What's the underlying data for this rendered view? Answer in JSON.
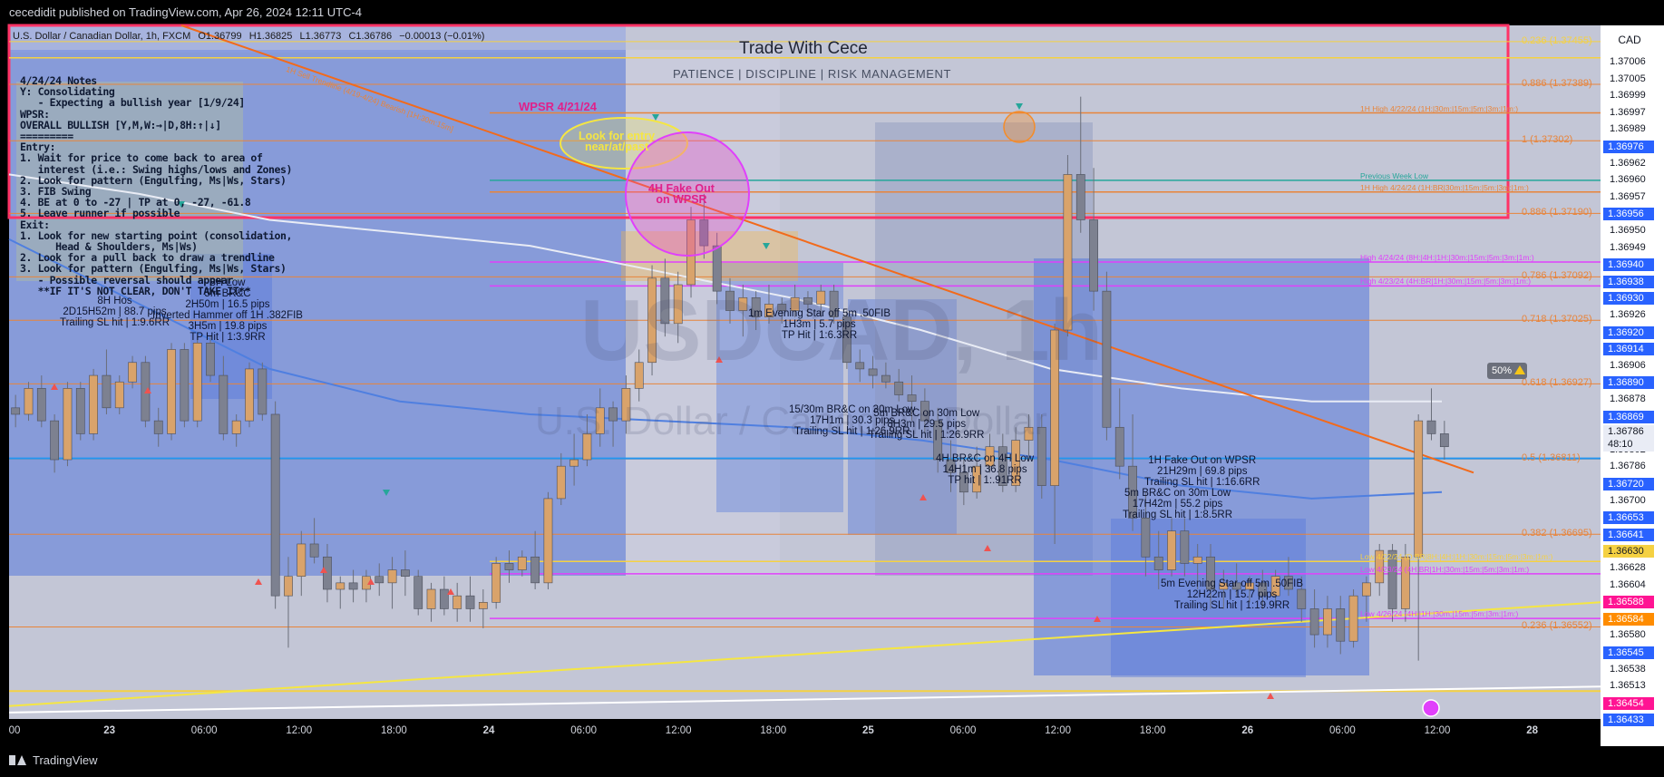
{
  "header": {
    "published_by": "cecedidit published on TradingView.com, Apr 26, 2024 12:11 UTC-4"
  },
  "symbol_bar": {
    "symbol": "U.S. Dollar / Canadian Dollar, 1h, FXCM",
    "open": "O1.36799",
    "high": "H1.36825",
    "low": "L1.36773",
    "close": "C1.36786",
    "change": "−0.00013 (−0.01%)"
  },
  "branding": {
    "title": "Trade With Cece",
    "subtitle": "PATIENCE  |  DISCIPLINE  |  RISK MANAGEMENT"
  },
  "watermark": {
    "ticker": "USDCAD, 1h",
    "name": "U.S. Dollar / Canadian Dollar"
  },
  "currency_badge": "CAD",
  "notes_text": "4/24/24 Notes\nY: Consolidating\n   - Expecting a bullish year [1/9/24]\nWPSR:\nOVERALL BULLISH [Y,M,W:→|D,8H:↑|↓]\n=========\nEntry:\n1. Wait for price to come back to area of\n   interest (i.e.: Swing highs/lows and Zones)\n2. Look for pattern (Engulfing, Ms|Ws, Stars)\n3. FIB Swing\n4. BE at 0 to -27 | TP at 0, -27, -61.8\n5. Leave runner if possible\nExit:\n1. Look for new starting point (consolidation,\n      Head & Shoulders, Ms|Ws)\n2. Look for a pull back to draw a trendline\n3. Look for pattern (Engulfing, Ms|Ws, Stars)\n   - Possible reversal should appear\n   **IF IT'S NOT CLEAR, DON'T TAKE IT**",
  "annotations": {
    "wpsr": "WPSR 4/21/24",
    "look_for_entry": "Look for entry\nnear/at/past",
    "fake_out_4h": "4H Fake Out\non WPSR",
    "trend_label": "1H Sell Trendline (4/19-4/24) Bearish [1H:30m:15m]",
    "trade1": "8H Hos\n2D15H52m | 88.7 pips\nTrailing SL hit | 1:9.6RR",
    "trade2": "8H Low\n5m BR&C\n2H50m | 16.5 pips\nInverted Hammer off 1H .382FIB\n3H5m | 19.8 pips\nTP Hit | 1:3.9RR",
    "trade3": "1m Evening Star off 5m .50FIB\n1H3m | 5.7 pips\nTP Hit | 1:6.3RR",
    "trade4": "15/30m BR&C on 30m Low\n17H1m | 30.3 pips\nTrailing SL hit | 1:26.9RR",
    "trade5": "5m BR&C on 30m Low\n8H3m | 29.5 pips\nTrailing SL hit | 1:26.9RR",
    "trade6": "4H BR&C on 4H Low\n14H1m | 36.8 pips\nTP hit | 1:.91RR",
    "trade7": "1H Fake Out on WPSR\n21H29m | 69.8 pips\nTrailing SL hit | 1:16.6RR",
    "trade8": "5m BR&C on 30m Low\n17H42m | 55.2 pips\nTrailing SL hit | 1:8.5RR",
    "trade9": "5m Evening Star off 5m .50FIB\n12H22m | 15.7 pips\nTrailing SL hit | 1:19.9RR"
  },
  "fib_levels": [
    {
      "label": "0.236 (1.37455)",
      "price": 1.37455,
      "color": "#f5d142"
    },
    {
      "label": "0.886 (1.37389)",
      "price": 1.37389,
      "color": "#e8843a"
    },
    {
      "label": "1 (1.37302)",
      "price": 1.37302,
      "color": "#e8843a"
    },
    {
      "label": "0.886 (1.37190)",
      "price": 1.3719,
      "color": "#e8843a"
    },
    {
      "label": "0.786 (1.37092)",
      "price": 1.37092,
      "color": "#e8843a"
    },
    {
      "label": "0.718 (1.37025)",
      "price": 1.37025,
      "color": "#e8843a"
    },
    {
      "label": "0.618 (1.36927)",
      "price": 1.36927,
      "color": "#e8843a"
    },
    {
      "label": "0.5 (1.36811)",
      "price": 1.36811,
      "color": "#e8843a"
    },
    {
      "label": "0.382 (1.36695)",
      "price": 1.36695,
      "color": "#e8843a"
    },
    {
      "label": "0.236 (1.36552)",
      "price": 1.36552,
      "color": "#e8843a"
    }
  ],
  "level_lines": [
    {
      "label": "1H High 4/22/24 (1H:|30m:|15m:|5m:|3m:|1m:)",
      "price": 1.37345,
      "color": "#e8843a"
    },
    {
      "label": "Previous Week Low",
      "price": 1.37241,
      "color": "#26a69a"
    },
    {
      "label": "1H High 4/24/24 (1H:BR|30m:|15m:|5m:|3m:|1m:)",
      "price": 1.37223,
      "color": "#e8843a"
    },
    {
      "label": "High 4/24/24 (8H:|4H:|1H:|30m:|15m:|5m:|3m:|1m:)",
      "price": 1.37115,
      "color": "#e040fb"
    },
    {
      "label": "High 4/23/24 (4H:BR|1H:|30m:|15m:|5m:|3m:|1m:)",
      "price": 1.37078,
      "color": "#e040fb"
    },
    {
      "label": "Low 4/22/24 (D:BR|8H:|4H:|1H:|30m:|15m:|5m:|3m:|1m:)",
      "price": 1.36653,
      "color": "#f5d142"
    },
    {
      "label": "Low 4/23/24 (4H:BR|1H:|30m:|15m:|5m:|3m:|1m:)",
      "price": 1.36634,
      "color": "#e040fb"
    },
    {
      "label": "Low 4/26/24 (4H:|1H:|30m:|15m:|5m:|3m:|1m:)",
      "price": 1.36565,
      "color": "#e040fb"
    }
  ],
  "price_scale": [
    "1.37006",
    "1.37005",
    "1.36999",
    "1.36997",
    "1.36989",
    "1.36976",
    "1.36962",
    "1.36960",
    "1.36957",
    "1.36956",
    "1.36950",
    "1.36949",
    "1.36940",
    "1.36938",
    "1.36930",
    "1.36926",
    "1.36920",
    "1.36914",
    "1.36906",
    "1.36890",
    "1.36878",
    "1.36869",
    "1.36850",
    "1.36802",
    "1.36786",
    "1.36720",
    "1.36700",
    "1.36653",
    "1.36641",
    "1.36630",
    "1.36628",
    "1.36604",
    "1.36588",
    "1.36584",
    "1.36580",
    "1.36545",
    "1.36538",
    "1.36513",
    "1.36454",
    "1.36433"
  ],
  "price_tags": [
    {
      "text": "1.36976",
      "color": "#2962ff"
    },
    {
      "text": "1.36956",
      "color": "#2962ff"
    },
    {
      "text": "1.36940",
      "color": "#2962ff"
    },
    {
      "text": "1.36938",
      "color": "#2962ff"
    },
    {
      "text": "1.36930",
      "color": "#2962ff"
    },
    {
      "text": "1.36920",
      "color": "#2962ff"
    },
    {
      "text": "1.36914",
      "color": "#2962ff"
    },
    {
      "text": "1.36890",
      "color": "#2962ff"
    },
    {
      "text": "1.36869",
      "color": "#2962ff"
    },
    {
      "text": "1.36720",
      "color": "#2962ff"
    },
    {
      "text": "1.36653",
      "color": "#2962ff"
    },
    {
      "text": "1.36641",
      "color": "#2962ff"
    },
    {
      "text": "1.36630",
      "color": "#f5d142"
    },
    {
      "text": "1.36588",
      "color": "#ff1493"
    },
    {
      "text": "1.36584",
      "color": "#ff8c00"
    },
    {
      "text": "1.36545",
      "color": "#2962ff"
    },
    {
      "text": "1.36454",
      "color": "#ff1493"
    },
    {
      "text": "1.36433",
      "color": "#2962ff"
    }
  ],
  "last_price": {
    "price": "1.36786",
    "countdown": "48:10"
  },
  "percent_tag": "50%",
  "time_axis": [
    {
      "label": "00",
      "bold": false
    },
    {
      "label": "23",
      "bold": true
    },
    {
      "label": "06:00",
      "bold": false
    },
    {
      "label": "12:00",
      "bold": false
    },
    {
      "label": "18:00",
      "bold": false
    },
    {
      "label": "24",
      "bold": true
    },
    {
      "label": "06:00",
      "bold": false
    },
    {
      "label": "12:00",
      "bold": false
    },
    {
      "label": "18:00",
      "bold": false
    },
    {
      "label": "25",
      "bold": true
    },
    {
      "label": "06:00",
      "bold": false
    },
    {
      "label": "12:00",
      "bold": false
    },
    {
      "label": "18:00",
      "bold": false
    },
    {
      "label": "26",
      "bold": true
    },
    {
      "label": "06:00",
      "bold": false
    },
    {
      "label": "12:00",
      "bold": false
    },
    {
      "label": "28",
      "bold": true
    }
  ],
  "footer": {
    "brand": "TradingView"
  },
  "chart_data": {
    "type": "candlestick",
    "title": "U.S. Dollar / Canadian Dollar, 1h, FXCM",
    "ylim": [
      1.3641,
      1.3748
    ],
    "candles": [
      [
        1.3689,
        1.3691,
        1.3686,
        1.3688
      ],
      [
        1.3688,
        1.3693,
        1.3687,
        1.3692
      ],
      [
        1.3692,
        1.3694,
        1.3686,
        1.3687
      ],
      [
        1.3687,
        1.3688,
        1.3679,
        1.3681
      ],
      [
        1.3681,
        1.3693,
        1.368,
        1.3692
      ],
      [
        1.3692,
        1.3693,
        1.3684,
        1.3685
      ],
      [
        1.3685,
        1.3695,
        1.3684,
        1.3694
      ],
      [
        1.3694,
        1.3698,
        1.3688,
        1.3689
      ],
      [
        1.3689,
        1.3694,
        1.3688,
        1.3693
      ],
      [
        1.3693,
        1.3697,
        1.3692,
        1.3696
      ],
      [
        1.3696,
        1.3697,
        1.3686,
        1.3687
      ],
      [
        1.3687,
        1.3689,
        1.3683,
        1.3685
      ],
      [
        1.3685,
        1.3699,
        1.3684,
        1.3698
      ],
      [
        1.3698,
        1.3699,
        1.3686,
        1.3687
      ],
      [
        1.3687,
        1.37,
        1.3686,
        1.3699
      ],
      [
        1.3699,
        1.37,
        1.3693,
        1.3694
      ],
      [
        1.3694,
        1.3697,
        1.3684,
        1.3685
      ],
      [
        1.3685,
        1.3688,
        1.3683,
        1.3687
      ],
      [
        1.3687,
        1.3696,
        1.3686,
        1.3695
      ],
      [
        1.3695,
        1.3696,
        1.3687,
        1.3688
      ],
      [
        1.3688,
        1.369,
        1.3658,
        1.366
      ],
      [
        1.366,
        1.3666,
        1.3652,
        1.3663
      ],
      [
        1.3663,
        1.367,
        1.366,
        1.3668
      ],
      [
        1.3668,
        1.3672,
        1.3665,
        1.3666
      ],
      [
        1.3666,
        1.3668,
        1.3659,
        1.3661
      ],
      [
        1.3661,
        1.3663,
        1.3658,
        1.3662
      ],
      [
        1.3662,
        1.3664,
        1.3659,
        1.3661
      ],
      [
        1.3661,
        1.3664,
        1.3659,
        1.3663
      ],
      [
        1.3663,
        1.3665,
        1.366,
        1.3662
      ],
      [
        1.3662,
        1.3666,
        1.3658,
        1.3664
      ],
      [
        1.3664,
        1.3667,
        1.366,
        1.3663
      ],
      [
        1.3663,
        1.3664,
        1.3657,
        1.3658
      ],
      [
        1.3658,
        1.3662,
        1.3656,
        1.3661
      ],
      [
        1.3661,
        1.3663,
        1.3657,
        1.3658
      ],
      [
        1.3658,
        1.3662,
        1.3656,
        1.366
      ],
      [
        1.366,
        1.3663,
        1.3656,
        1.3658
      ],
      [
        1.3658,
        1.3661,
        1.3655,
        1.3659
      ],
      [
        1.3659,
        1.3666,
        1.3658,
        1.3665
      ],
      [
        1.3665,
        1.3667,
        1.3662,
        1.3664
      ],
      [
        1.3664,
        1.3667,
        1.3663,
        1.3666
      ],
      [
        1.3666,
        1.367,
        1.3661,
        1.3662
      ],
      [
        1.3662,
        1.3676,
        1.3661,
        1.3675
      ],
      [
        1.3675,
        1.3682,
        1.3674,
        1.368
      ],
      [
        1.368,
        1.3685,
        1.3677,
        1.3681
      ],
      [
        1.3681,
        1.3688,
        1.368,
        1.3685
      ],
      [
        1.3685,
        1.3692,
        1.3683,
        1.3689
      ],
      [
        1.3689,
        1.369,
        1.3683,
        1.3687
      ],
      [
        1.3687,
        1.3694,
        1.3685,
        1.3692
      ],
      [
        1.3692,
        1.3698,
        1.369,
        1.3696
      ],
      [
        1.3696,
        1.3711,
        1.3694,
        1.3709
      ],
      [
        1.3709,
        1.3712,
        1.37,
        1.3702
      ],
      [
        1.3702,
        1.371,
        1.3699,
        1.3708
      ],
      [
        1.3708,
        1.372,
        1.3706,
        1.3718
      ],
      [
        1.3718,
        1.3722,
        1.3712,
        1.3714
      ],
      [
        1.3714,
        1.3716,
        1.3705,
        1.3707
      ],
      [
        1.3707,
        1.3709,
        1.3702,
        1.3704
      ],
      [
        1.3704,
        1.3708,
        1.37,
        1.3706
      ],
      [
        1.3706,
        1.3707,
        1.3701,
        1.3703
      ],
      [
        1.3703,
        1.3708,
        1.3702,
        1.3705
      ],
      [
        1.3705,
        1.3706,
        1.3702,
        1.3704
      ],
      [
        1.3704,
        1.3708,
        1.3703,
        1.3706
      ],
      [
        1.3706,
        1.3707,
        1.3703,
        1.3705
      ],
      [
        1.3705,
        1.3708,
        1.3703,
        1.3707
      ],
      [
        1.3707,
        1.3708,
        1.3702,
        1.3703
      ],
      [
        1.3703,
        1.3704,
        1.3695,
        1.3696
      ],
      [
        1.3696,
        1.3698,
        1.3693,
        1.3695
      ],
      [
        1.3695,
        1.3697,
        1.3692,
        1.3694
      ],
      [
        1.3694,
        1.3696,
        1.3692,
        1.3693
      ],
      [
        1.3693,
        1.3695,
        1.369,
        1.3691
      ],
      [
        1.3691,
        1.3694,
        1.3687,
        1.369
      ],
      [
        1.369,
        1.3692,
        1.3685,
        1.3687
      ],
      [
        1.3687,
        1.3689,
        1.3679,
        1.3681
      ],
      [
        1.3681,
        1.3684,
        1.3676,
        1.3679
      ],
      [
        1.3679,
        1.3681,
        1.3674,
        1.3676
      ],
      [
        1.3676,
        1.3683,
        1.3675,
        1.368
      ],
      [
        1.368,
        1.3685,
        1.3679,
        1.3683
      ],
      [
        1.3683,
        1.3685,
        1.3676,
        1.3677
      ],
      [
        1.3677,
        1.3686,
        1.3676,
        1.3684
      ],
      [
        1.3684,
        1.3688,
        1.3681,
        1.3686
      ],
      [
        1.3686,
        1.3688,
        1.3675,
        1.3677
      ],
      [
        1.3677,
        1.3702,
        1.3668,
        1.3701
      ],
      [
        1.3701,
        1.3728,
        1.37,
        1.3725
      ],
      [
        1.3725,
        1.3737,
        1.3716,
        1.3718
      ],
      [
        1.3718,
        1.3726,
        1.3704,
        1.3707
      ],
      [
        1.3707,
        1.371,
        1.3684,
        1.3686
      ],
      [
        1.3686,
        1.3692,
        1.3678,
        1.368
      ],
      [
        1.368,
        1.3688,
        1.367,
        1.3672
      ],
      [
        1.3672,
        1.3676,
        1.3663,
        1.3666
      ],
      [
        1.3666,
        1.367,
        1.3661,
        1.3664
      ],
      [
        1.3664,
        1.3672,
        1.3663,
        1.367
      ],
      [
        1.367,
        1.3672,
        1.3663,
        1.3665
      ],
      [
        1.3665,
        1.3668,
        1.3661,
        1.3666
      ],
      [
        1.3666,
        1.3668,
        1.3658,
        1.3661
      ],
      [
        1.3661,
        1.3664,
        1.3658,
        1.3662
      ],
      [
        1.3662,
        1.3665,
        1.366,
        1.3661
      ],
      [
        1.3661,
        1.3663,
        1.3659,
        1.3662
      ],
      [
        1.3662,
        1.3664,
        1.3658,
        1.366
      ],
      [
        1.366,
        1.3664,
        1.3658,
        1.3663
      ],
      [
        1.3663,
        1.3666,
        1.366,
        1.3661
      ],
      [
        1.3661,
        1.3663,
        1.3656,
        1.3658
      ],
      [
        1.3658,
        1.3661,
        1.3652,
        1.3654
      ],
      [
        1.3654,
        1.366,
        1.3652,
        1.3658
      ],
      [
        1.3658,
        1.366,
        1.3651,
        1.3653
      ],
      [
        1.3653,
        1.3661,
        1.3652,
        1.366
      ],
      [
        1.366,
        1.3663,
        1.3656,
        1.3662
      ],
      [
        1.3662,
        1.3668,
        1.366,
        1.3667
      ],
      [
        1.3667,
        1.3668,
        1.3656,
        1.3658
      ],
      [
        1.3658,
        1.3668,
        1.3656,
        1.3666
      ],
      [
        1.3666,
        1.3688,
        1.365,
        1.3687
      ],
      [
        1.3687,
        1.3692,
        1.3684,
        1.3685
      ],
      [
        1.3685,
        1.3687,
        1.3681,
        1.3683
      ]
    ],
    "moving_averages": [
      {
        "name": "",
        "color": "#4f7fe0",
        "values": [
          1.3715,
          1.3705,
          1.3695,
          1.369,
          1.3688,
          1.3687,
          1.3686,
          1.3684,
          1.3681,
          1.3677,
          1.3675,
          1.3676
        ]
      },
      {
        "name": "",
        "color": "#e9ecf5",
        "values": [
          1.3725,
          1.3722,
          1.3718,
          1.3716,
          1.3714,
          1.371,
          1.3706,
          1.3701,
          1.3695,
          1.3692,
          1.369,
          1.369
        ]
      }
    ]
  }
}
